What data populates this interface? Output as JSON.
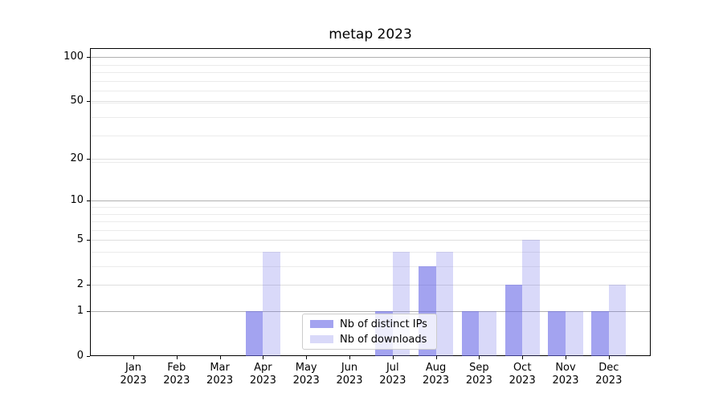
{
  "chart_data": {
    "type": "bar",
    "title": "metap 2023",
    "year": "2023",
    "months": [
      "Jan",
      "Feb",
      "Mar",
      "Apr",
      "May",
      "Jun",
      "Jul",
      "Aug",
      "Sep",
      "Oct",
      "Nov",
      "Dec"
    ],
    "categories": [
      "Jan 2023",
      "Feb 2023",
      "Mar 2023",
      "Apr 2023",
      "May 2023",
      "Jun 2023",
      "Jul 2023",
      "Aug 2023",
      "Sep 2023",
      "Oct 2023",
      "Nov 2023",
      "Dec 2023"
    ],
    "series": [
      {
        "name": "Nb of distinct IPs",
        "color": "rgba(102,102,230,0.60)",
        "values": [
          0,
          0,
          0,
          1,
          0,
          0,
          1,
          3,
          1,
          2,
          1,
          1
        ]
      },
      {
        "name": "Nb of downloads",
        "color": "rgba(102,102,230,0.25)",
        "values": [
          0,
          0,
          0,
          4,
          0,
          0,
          4,
          4,
          1,
          5,
          1,
          2
        ]
      }
    ],
    "xlabel": "",
    "ylabel": "",
    "y_scale": "log1p",
    "y_ticks": [
      0,
      1,
      2,
      5,
      10,
      20,
      50,
      100
    ],
    "ylim": [
      0,
      112
    ],
    "grid": true,
    "legend_position": "lower center",
    "colors": {
      "grid_decade": "#b0b0b0",
      "grid_labeled": "#dedede",
      "grid_minor": "#ebebeb",
      "spine": "#000000",
      "text": "#000000",
      "legend_border": "#cccccc",
      "legend_bg": "rgba(255,255,255,0.8)"
    }
  }
}
